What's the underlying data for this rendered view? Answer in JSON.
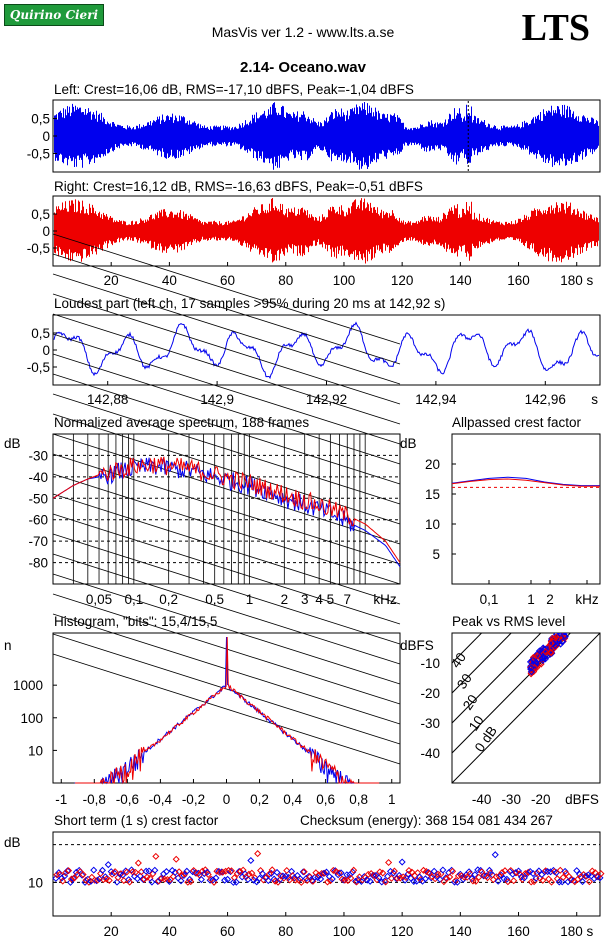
{
  "header": {
    "logo_text": "Quirino Cieri",
    "app_title": "MasVis ver 1.2 - www.lts.a.se",
    "brand": "LTS",
    "file_title": "2.14- Oceano.wav"
  },
  "colors": {
    "left": "#0000ee",
    "right": "#ee0000",
    "logo": "#1f9a3b"
  },
  "panels": {
    "left_title": "Left: Crest=16,06 dB, RMS=-17,10 dBFS, Peak=-1,04 dBFS",
    "right_title": "Right: Crest=16,12 dB, RMS=-16,63 dBFS, Peak=-0,51 dBFS",
    "loudest_title": "Loudest part (left  ch, 17 samples >95% during 20 ms at 142,92 s)",
    "spectrum_title": "Normalized average spectrum, 188 frames",
    "allpass_title": "Allpassed crest factor",
    "histogram_title": "Histogram, \"bits\": 15,4/15,5",
    "pvr_title": "Peak vs RMS level",
    "crest_title": "Short term (1 s) crest factor",
    "checksum": "Checksum (energy):   368 154 081 434 267"
  },
  "chart_data": [
    {
      "type": "line",
      "name": "left-waveform",
      "ylim": [
        -1,
        1
      ],
      "yticks": [
        "0,5",
        "0",
        "-0,5"
      ]
    },
    {
      "type": "line",
      "name": "right-waveform",
      "ylim": [
        -1,
        1
      ],
      "yticks": [
        "0,5",
        "0",
        "-0,5"
      ],
      "xticks": [
        "20",
        "40",
        "60",
        "80",
        "100",
        "120",
        "140",
        "160",
        "180 s"
      ],
      "xlim": [
        0,
        188
      ]
    },
    {
      "type": "line",
      "name": "loudest-part",
      "ylim": [
        -1,
        1
      ],
      "yticks": [
        "0,5",
        "0",
        "-0,5"
      ],
      "xticks": [
        "142,88",
        "142,9",
        "142,92",
        "142,94",
        "142,96",
        "s"
      ],
      "xlim": [
        142.87,
        142.97
      ]
    },
    {
      "type": "line",
      "name": "spectrum",
      "ylabel": "dB",
      "yticks": [
        "-30",
        "-40",
        "-50",
        "-60",
        "-70",
        "-80"
      ],
      "ylim": [
        -90,
        -20
      ],
      "xticks": [
        "0,05",
        "0,1",
        "0,2",
        "0,5",
        "1",
        "2",
        "3",
        "4",
        "5",
        "7",
        "kHz"
      ],
      "series": [
        {
          "name": "left",
          "x_khz": [
            0.02,
            0.03,
            0.04,
            0.05,
            0.07,
            0.1,
            0.15,
            0.2,
            0.3,
            0.5,
            0.7,
            1,
            1.5,
            2,
            3,
            5,
            7,
            10,
            15,
            20
          ],
          "y": [
            -50,
            -44,
            -41,
            -40,
            -38,
            -36,
            -35,
            -36,
            -37,
            -40,
            -42,
            -44,
            -47,
            -50,
            -53,
            -57,
            -61,
            -65,
            -72,
            -82
          ]
        },
        {
          "name": "right",
          "x_khz": [
            0.02,
            0.03,
            0.04,
            0.05,
            0.07,
            0.1,
            0.15,
            0.2,
            0.3,
            0.5,
            0.7,
            1,
            1.5,
            2,
            3,
            5,
            7,
            10,
            15,
            20
          ],
          "y": [
            -50,
            -44,
            -41,
            -39,
            -37,
            -35,
            -34,
            -35,
            -36,
            -39,
            -41,
            -43,
            -46,
            -48,
            -51,
            -55,
            -58,
            -62,
            -70,
            -80
          ]
        }
      ]
    },
    {
      "type": "line",
      "name": "allpassed-crest",
      "ylabel": "dB",
      "yticks": [
        "20",
        "15",
        "10",
        "5"
      ],
      "ylim": [
        0,
        25
      ],
      "xticks": [
        "0,1",
        "1",
        "2",
        "kHz"
      ],
      "series": [
        {
          "name": "left",
          "y": [
            16.8,
            17.2,
            17.6,
            17.8,
            17.6,
            17.0,
            16.6,
            16.4,
            16.4
          ]
        },
        {
          "name": "right",
          "y": [
            16.7,
            17.1,
            17.4,
            17.5,
            17.3,
            16.9,
            16.5,
            16.3,
            16.3
          ]
        }
      ]
    },
    {
      "type": "line",
      "name": "histogram",
      "ylabel": "n",
      "yticks": [
        "1000",
        "100",
        "10"
      ],
      "xticks": [
        "-1",
        "-0,8",
        "-0,6",
        "-0,4",
        "-0,2",
        "0",
        "0,2",
        "0,4",
        "0,6",
        "0,8",
        "1"
      ],
      "xlim": [
        -1.05,
        1.05
      ]
    },
    {
      "type": "scatter",
      "name": "peak-vs-rms",
      "ylabel": "dBFS",
      "xlabel": "dBFS",
      "yticks": [
        "-10",
        "-20",
        "-30",
        "-40"
      ],
      "xticks": [
        "-40",
        "-30",
        "-20"
      ],
      "diagonal_labels": [
        "40",
        "30",
        "20",
        "10",
        "0 dB"
      ],
      "xlim": [
        -50,
        0
      ],
      "ylim": [
        -50,
        0
      ]
    },
    {
      "type": "scatter",
      "name": "short-term-crest",
      "ylabel": "dB",
      "yticks": [
        "10"
      ],
      "xticks": [
        "20",
        "40",
        "60",
        "80",
        "100",
        "120",
        "140",
        "160",
        "180 s"
      ],
      "xlim": [
        0,
        188
      ]
    }
  ]
}
